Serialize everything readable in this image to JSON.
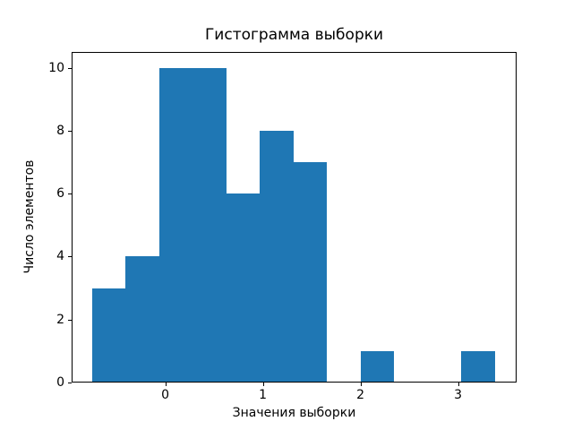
{
  "figure": {
    "background": "#ffffff",
    "text_color": "#000000",
    "spine_color": "#000000"
  },
  "chart_data": {
    "type": "bar",
    "chart_kind": "histogram",
    "title": "Гистограмма выборки",
    "xlabel": "Значения выборки",
    "ylabel": "Число элементов",
    "bar_color": "#1f77b4",
    "bin_edges": [
      -0.75,
      -0.406,
      -0.062,
      0.282,
      0.626,
      0.97,
      1.314,
      1.658,
      2.002,
      2.346,
      2.69,
      3.034,
      3.378
    ],
    "counts": [
      3,
      4,
      10,
      10,
      6,
      8,
      7,
      0,
      1,
      0,
      0,
      1
    ],
    "x_ticks": [
      0,
      1,
      2,
      3
    ],
    "y_ticks": [
      0,
      2,
      4,
      6,
      8,
      10
    ],
    "xlim": [
      -0.96,
      3.6
    ],
    "ylim": [
      0,
      10.5
    ],
    "grid": false,
    "legend": null
  }
}
